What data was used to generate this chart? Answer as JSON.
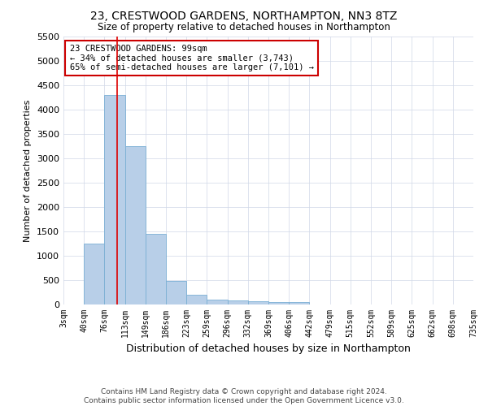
{
  "title": "23, CRESTWOOD GARDENS, NORTHAMPTON, NN3 8TZ",
  "subtitle": "Size of property relative to detached houses in Northampton",
  "xlabel": "Distribution of detached houses by size in Northampton",
  "ylabel": "Number of detached properties",
  "footer_line1": "Contains HM Land Registry data © Crown copyright and database right 2024.",
  "footer_line2": "Contains public sector information licensed under the Open Government Licence v3.0.",
  "annotation_line1": "23 CRESTWOOD GARDENS: 99sqm",
  "annotation_line2": "← 34% of detached houses are smaller (3,743)",
  "annotation_line3": "65% of semi-detached houses are larger (7,101) →",
  "property_size": 99,
  "bar_color": "#b8cfe8",
  "bar_edge_color": "#7aafd4",
  "redline_color": "#dd0000",
  "annotation_box_edgecolor": "#cc0000",
  "background_color": "#ffffff",
  "grid_color": "#d0d8e8",
  "categories": [
    "3sqm",
    "40sqm",
    "76sqm",
    "113sqm",
    "149sqm",
    "186sqm",
    "223sqm",
    "259sqm",
    "296sqm",
    "332sqm",
    "369sqm",
    "406sqm",
    "442sqm",
    "479sqm",
    "515sqm",
    "552sqm",
    "589sqm",
    "625sqm",
    "662sqm",
    "698sqm",
    "735sqm"
  ],
  "values": [
    0,
    1250,
    4300,
    3250,
    1450,
    480,
    200,
    100,
    80,
    60,
    50,
    50,
    0,
    0,
    0,
    0,
    0,
    0,
    0,
    0,
    0
  ],
  "bin_edges": [
    3,
    40,
    76,
    113,
    149,
    186,
    223,
    259,
    296,
    332,
    369,
    406,
    442,
    479,
    515,
    552,
    589,
    625,
    662,
    698,
    735
  ],
  "ylim": [
    0,
    5500
  ],
  "yticks": [
    0,
    500,
    1000,
    1500,
    2000,
    2500,
    3000,
    3500,
    4000,
    4500,
    5000,
    5500
  ]
}
